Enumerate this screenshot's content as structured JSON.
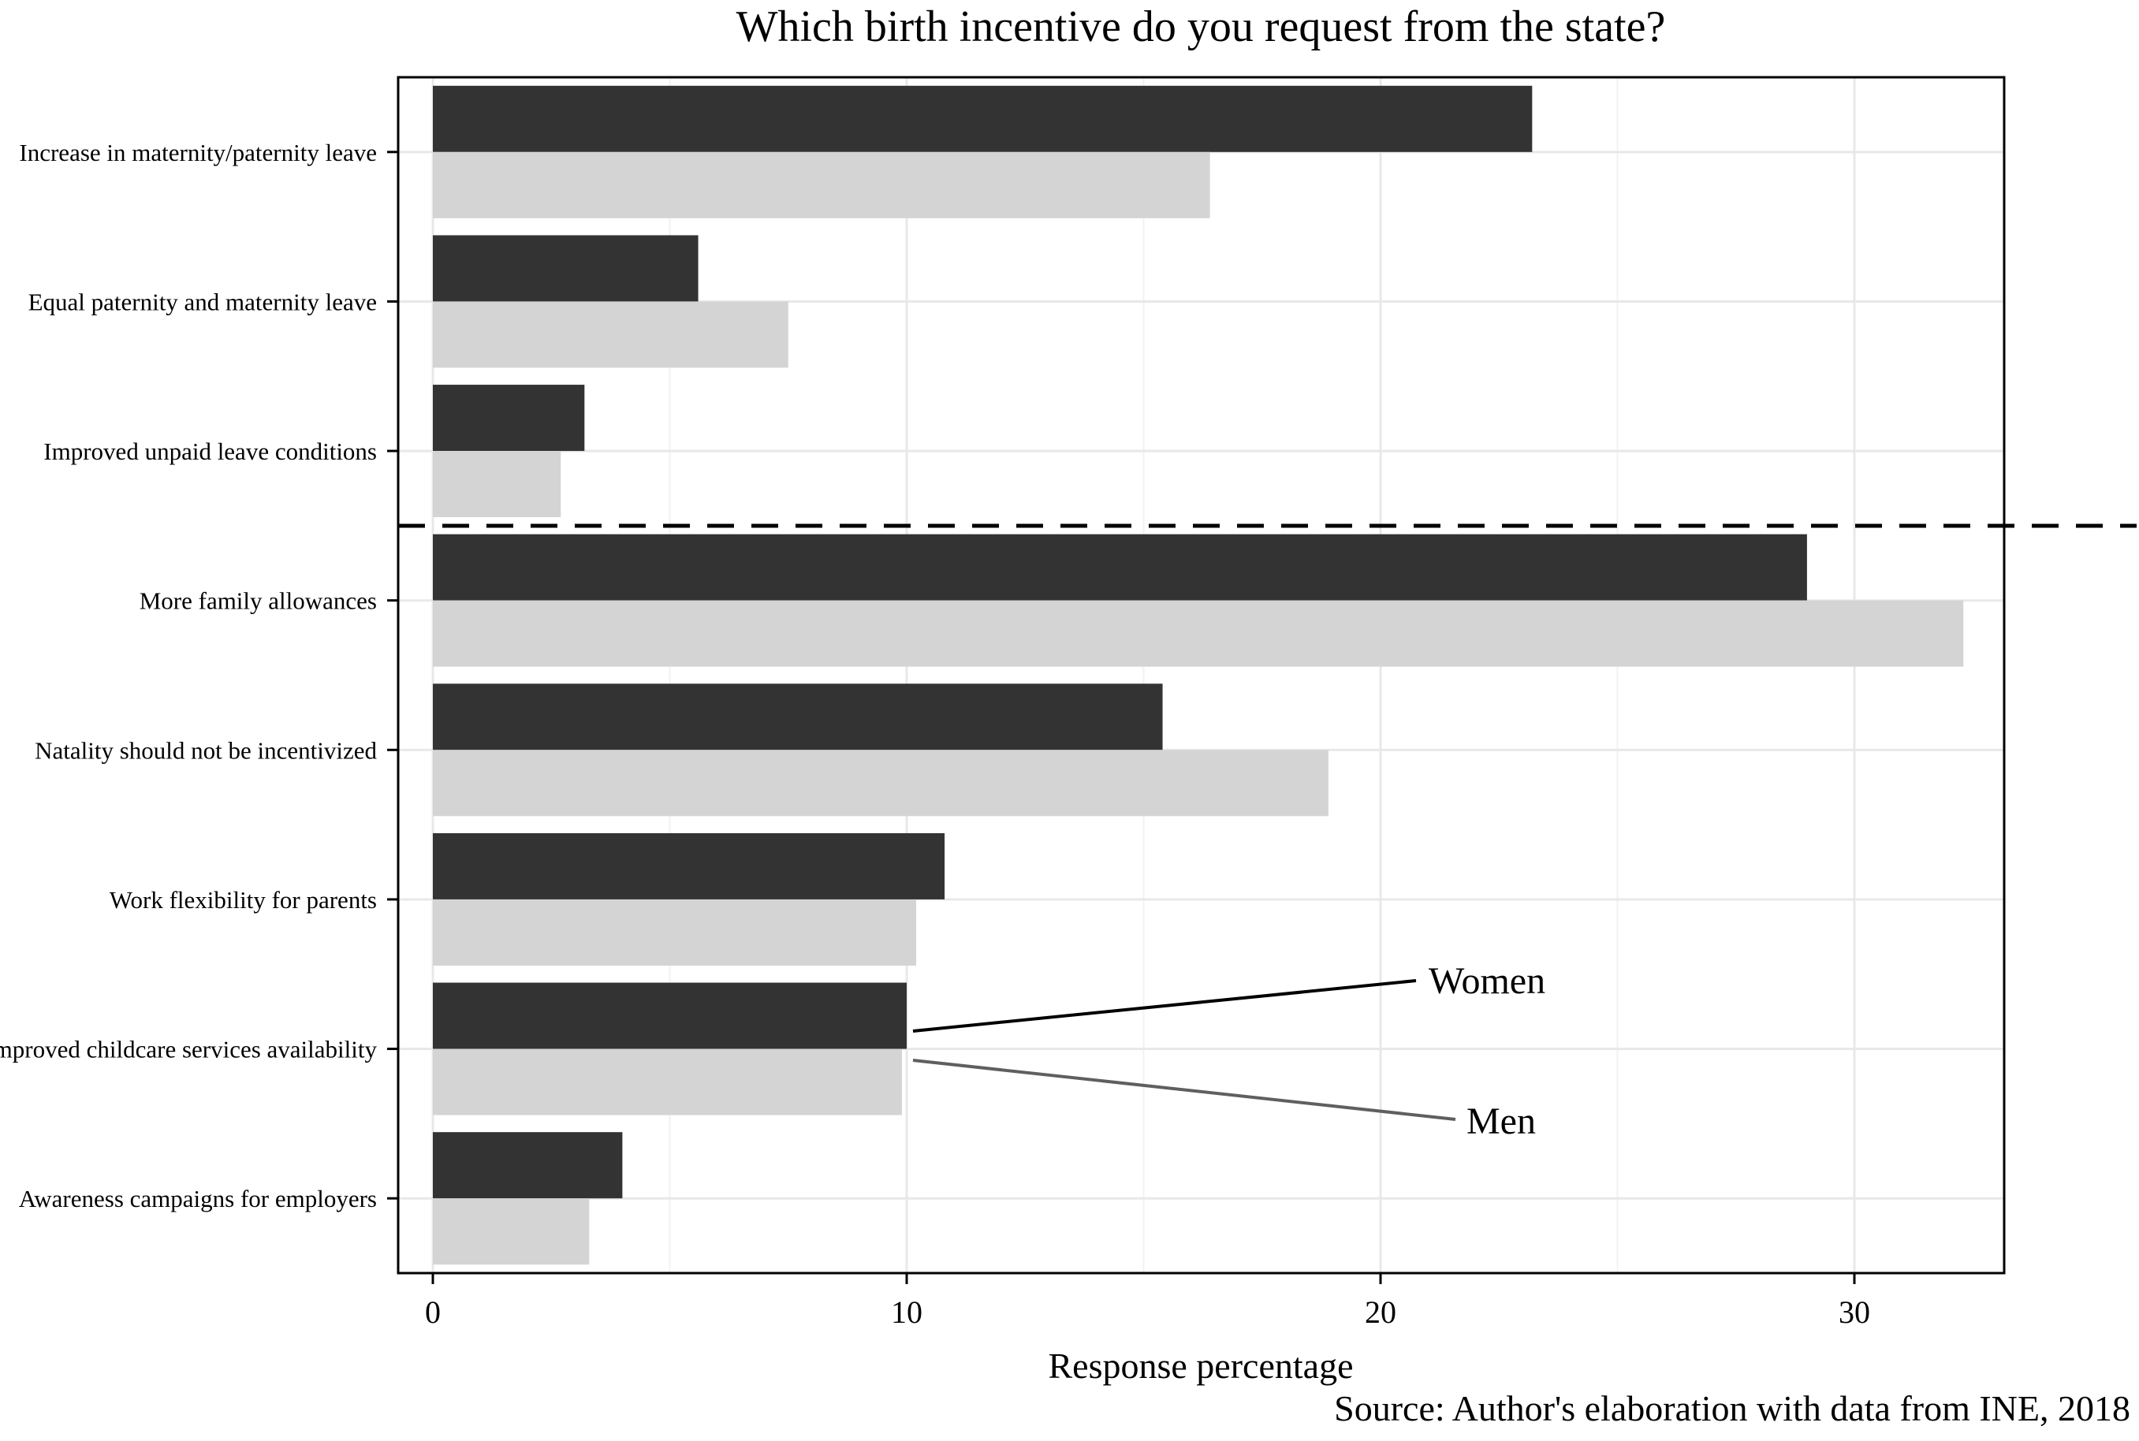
{
  "chart_data": {
    "type": "bar",
    "orientation": "horizontal",
    "title": "Which birth incentive do you request from the state?",
    "xlabel": "Response percentage",
    "caption": "Source: Author's elaboration with data from INE, 2018",
    "categories": [
      "Increase in maternity/paternity leave",
      "Equal paternity and maternity leave",
      "Improved unpaid leave conditions",
      "More family allowances",
      "Natality should not be incentivized",
      "Work flexibility for parents",
      "Improved childcare services availability",
      "Awareness campaigns for employers"
    ],
    "series": [
      {
        "name": "Women",
        "color": "#333333",
        "values": [
          23.2,
          5.6,
          3.2,
          29.0,
          15.4,
          10.8,
          10.0,
          4.0
        ]
      },
      {
        "name": "Men",
        "color": "#d4d4d4",
        "values": [
          16.4,
          7.5,
          2.7,
          32.3,
          18.9,
          10.2,
          9.9,
          3.3
        ]
      }
    ],
    "x_ticks": [
      0,
      10,
      20,
      30
    ],
    "x_minor_ticks": [
      5,
      15,
      25
    ],
    "xlim": [
      0,
      33.2
    ],
    "separator_after_category": 3,
    "legend_position": "annotation-inside-plot",
    "colors": {
      "grid_major": "#e8e8e8",
      "grid_minor": "#f2f2f2",
      "panel_border": "#000000",
      "separator": "#000000",
      "women_line": "#000000",
      "men_line": "#5f5f5f",
      "men_text": "#6e6e6e"
    }
  }
}
